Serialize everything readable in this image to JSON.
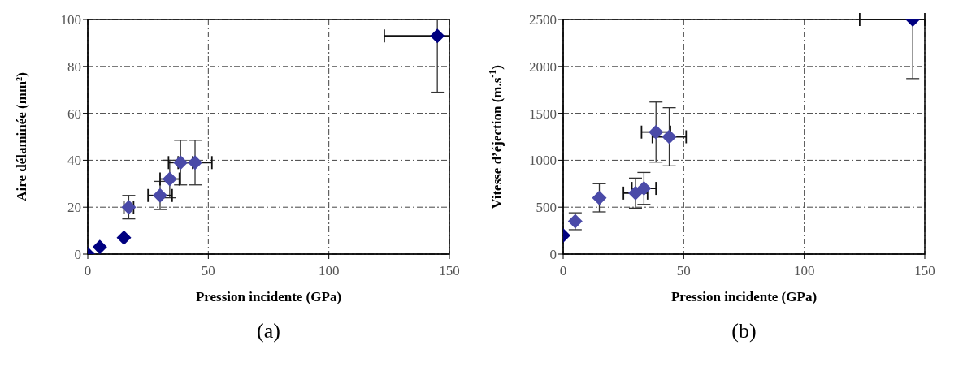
{
  "chart_data": [
    {
      "type": "scatter",
      "xlabel": "Pression incidente (GPa)",
      "ylabel": "Aire délaminée (mm²)",
      "annotations": [
        "(a)"
      ],
      "x": [
        0,
        5,
        15,
        17,
        30,
        34,
        38.5,
        44.5,
        145
      ],
      "series": [
        {
          "values": [
            0,
            3,
            7,
            20,
            25,
            32,
            39,
            39,
            93
          ],
          "colors": [
            "#000080",
            "#000080",
            "#000080",
            "#4a4aa8",
            "#4a4aa8",
            "#4a4aa8",
            "#4a4aa8",
            "#4a4aa8",
            "#000080"
          ],
          "errors": [
            null,
            null,
            null,
            5,
            6,
            8,
            9.5,
            9.5,
            [
              69,
              100
            ]
          ],
          "xerrors": [
            null,
            null,
            null,
            2,
            5,
            4,
            5,
            7,
            [
              123,
              150
            ]
          ]
        }
      ],
      "xlim": [
        0,
        150
      ],
      "xticks": [
        0,
        50,
        100,
        150
      ],
      "ylim": [
        0,
        100
      ],
      "yticks": [
        0,
        20,
        40,
        60,
        80,
        100
      ],
      "grid": true,
      "marker": "diamond",
      "legend": false
    },
    {
      "type": "scatter",
      "xlabel": "Pression incidente (GPa)",
      "ylabel": "Vitesse d’éjection (m.s$^{-1}$)",
      "annotations": [
        "(b)"
      ],
      "x": [
        0,
        5,
        15,
        30,
        33.5,
        38.5,
        44,
        145
      ],
      "series": [
        {
          "values": [
            200,
            350,
            600,
            650,
            700,
            1300,
            1250,
            2500
          ],
          "colors": [
            "#000080",
            "#4a4aa8",
            "#4a4aa8",
            "#4a4aa8",
            "#4a4aa8",
            "#4a4aa8",
            "#4a4aa8",
            "#000080"
          ],
          "errors": [
            null,
            90,
            150,
            160,
            170,
            320,
            310,
            [
              1870,
              2500
            ]
          ],
          "xerrors": [
            null,
            null,
            null,
            5,
            5,
            6,
            7,
            [
              123,
              150
            ]
          ]
        }
      ],
      "xlim": [
        0,
        150
      ],
      "xticks": [
        0,
        50,
        100,
        150
      ],
      "ylim": [
        0,
        2500
      ],
      "yticks": [
        0,
        500,
        1000,
        1500,
        2000,
        2500
      ],
      "grid": true,
      "marker": "diamond",
      "legend": false
    }
  ]
}
